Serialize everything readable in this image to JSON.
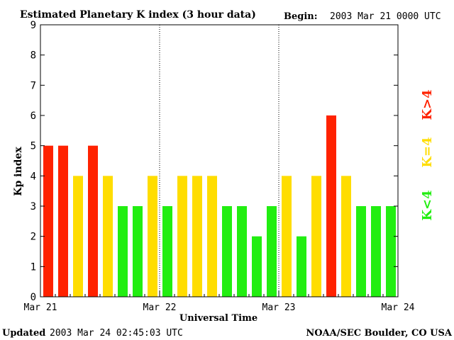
{
  "header": {
    "title": "Estimated Planetary K index (3 hour data)",
    "begin_label": "Begin:",
    "begin_value": "2003 Mar 21 0000 UTC"
  },
  "footer": {
    "updated_label": "Updated",
    "updated_value": "2003 Mar 24 02:45:03 UTC",
    "source": "NOAA/SEC Boulder, CO USA"
  },
  "legend": {
    "low": "K<4",
    "mid": "K=4",
    "high": "K>4"
  },
  "colors": {
    "low": "#22ee11",
    "mid": "#ffdd00",
    "high": "#ff2200",
    "axis": "#000000",
    "divider": "#000000"
  },
  "chart_data": {
    "type": "bar",
    "xlabel": "Universal Time",
    "ylabel": "Kp index",
    "ylim": [
      0,
      9
    ],
    "yticks": [
      0,
      1,
      2,
      3,
      4,
      5,
      6,
      7,
      8,
      9
    ],
    "x_range": [
      "Mar 21",
      "Mar 24"
    ],
    "day_labels": [
      "Mar 21",
      "Mar 22",
      "Mar 23",
      "Mar 24"
    ],
    "interval_hours": 3,
    "grid": false,
    "legend_position": "right",
    "values": [
      5,
      5,
      4,
      5,
      4,
      3,
      3,
      4,
      3,
      4,
      4,
      4,
      3,
      3,
      2,
      3,
      4,
      2,
      4,
      6,
      4,
      3,
      3,
      3
    ]
  }
}
